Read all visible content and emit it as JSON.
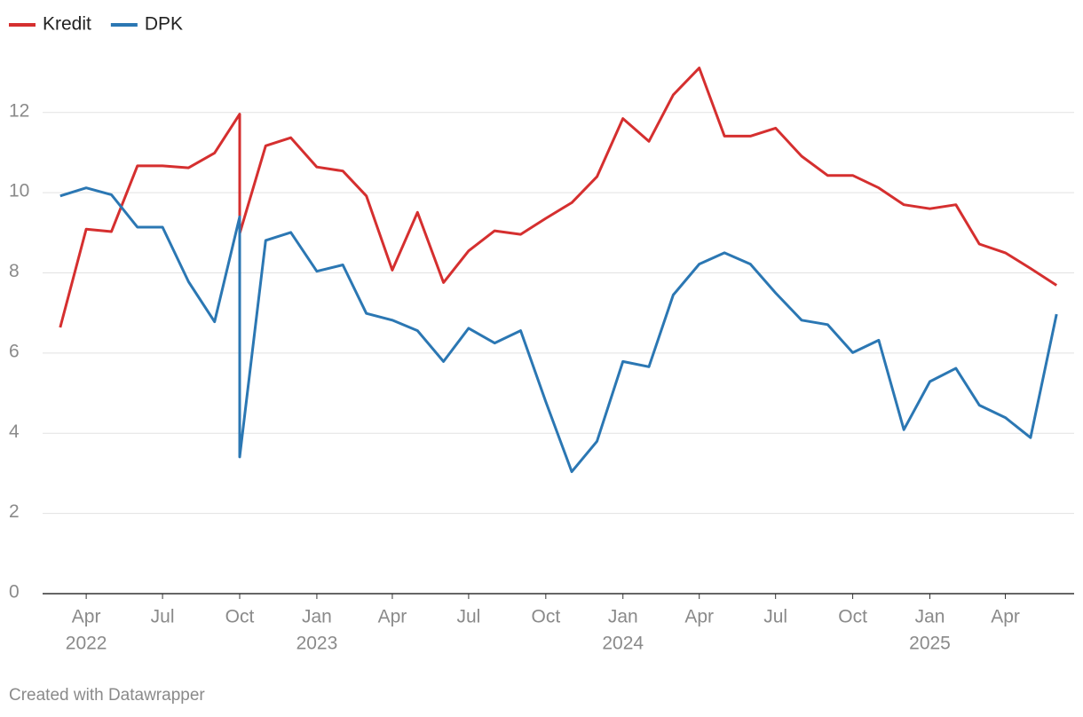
{
  "chart_data": {
    "type": "line",
    "footer": "Created with Datawrapper",
    "x": [
      "2022-03",
      "2022-04",
      "2022-05",
      "2022-06",
      "2022-07",
      "2022-08",
      "2022-09",
      "2022-10",
      "2022-10",
      "2022-11",
      "2022-12",
      "2023-01",
      "2023-02",
      "2023-03",
      "2023-04",
      "2023-05",
      "2023-06",
      "2023-07",
      "2023-08",
      "2023-09",
      "2023-10",
      "2023-11",
      "2023-12",
      "2024-01",
      "2024-02",
      "2024-03",
      "2024-04",
      "2024-05",
      "2024-06",
      "2024-07",
      "2024-08",
      "2024-09",
      "2024-10",
      "2024-11",
      "2024-12",
      "2025-01",
      "2025-02",
      "2025-03",
      "2025-04",
      "2025-05",
      "2025-06"
    ],
    "series": [
      {
        "name": "Kredit",
        "color": "#d52f2f",
        "values": [
          6.64,
          9.09,
          9.03,
          10.67,
          10.67,
          10.62,
          10.99,
          11.96,
          8.98,
          11.17,
          11.37,
          10.64,
          10.54,
          9.92,
          8.07,
          9.51,
          7.76,
          8.55,
          9.05,
          8.96,
          9.36,
          9.75,
          10.4,
          11.85,
          11.28,
          12.44,
          13.11,
          11.41,
          11.41,
          11.61,
          10.91,
          10.43,
          10.43,
          10.12,
          9.7,
          9.6,
          9.7,
          8.72,
          8.5,
          8.11,
          7.69
        ]
      },
      {
        "name": "DPK",
        "color": "#2b77b3",
        "values": [
          9.92,
          10.12,
          9.95,
          9.14,
          9.14,
          7.78,
          6.78,
          9.4,
          3.41,
          8.81,
          9.01,
          8.04,
          8.2,
          6.99,
          6.82,
          6.56,
          5.79,
          6.62,
          6.25,
          6.56,
          4.79,
          3.04,
          3.8,
          5.79,
          5.66,
          7.45,
          8.22,
          8.5,
          8.22,
          7.5,
          6.82,
          6.71,
          6.01,
          6.32,
          4.09,
          5.29,
          5.62,
          4.7,
          4.39,
          3.89,
          6.97
        ]
      }
    ],
    "xlim": [
      "2022-02-08",
      "2025-06-22"
    ],
    "xticks": [
      {
        "value": "2022-04",
        "label": "Apr",
        "year": "2022"
      },
      {
        "value": "2022-07",
        "label": "Jul"
      },
      {
        "value": "2022-10",
        "label": "Oct"
      },
      {
        "value": "2023-01",
        "label": "Jan",
        "year": "2023"
      },
      {
        "value": "2023-04",
        "label": "Apr"
      },
      {
        "value": "2023-07",
        "label": "Jul"
      },
      {
        "value": "2023-10",
        "label": "Oct"
      },
      {
        "value": "2024-01",
        "label": "Jan",
        "year": "2024"
      },
      {
        "value": "2024-04",
        "label": "Apr"
      },
      {
        "value": "2024-07",
        "label": "Jul"
      },
      {
        "value": "2024-10",
        "label": "Oct"
      },
      {
        "value": "2025-01",
        "label": "Jan",
        "year": "2025"
      },
      {
        "value": "2025-04",
        "label": "Apr"
      }
    ],
    "ylim": [
      0,
      13.5
    ],
    "yticks": [
      0,
      2,
      4,
      6,
      8,
      10,
      12
    ],
    "grid": true,
    "legend": "top-left"
  }
}
